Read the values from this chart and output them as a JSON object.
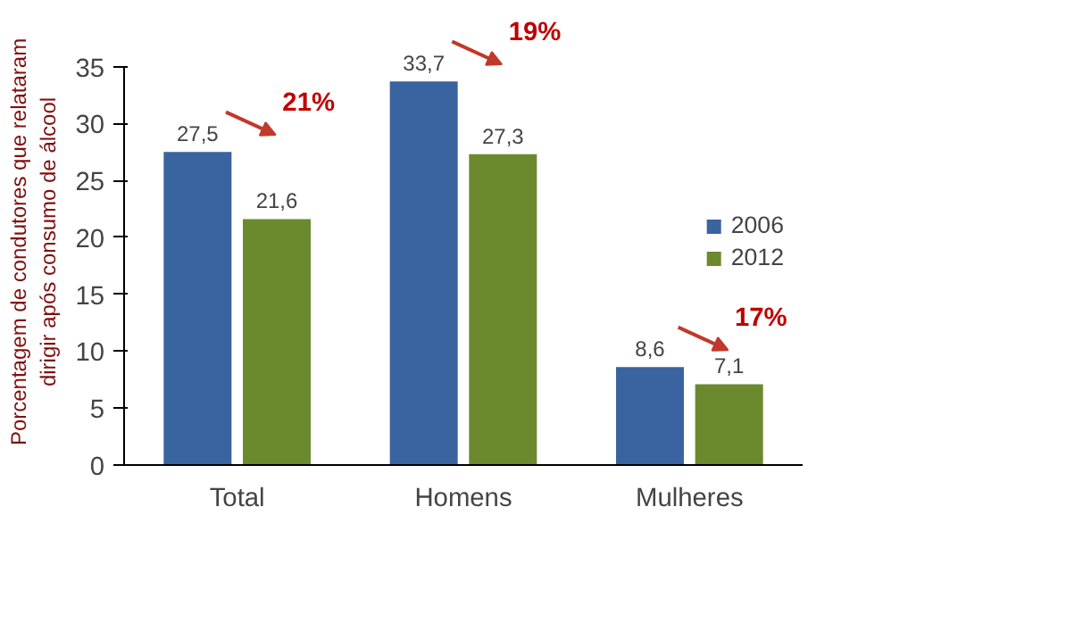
{
  "chart_data": {
    "type": "bar",
    "ylabel": "Porcentagem de condutores que relataram\ndirigir após consumo de álcool",
    "categories": [
      "Total",
      "Homens",
      "Mulheres"
    ],
    "series": [
      {
        "name": "2006",
        "color": "#3a64a0",
        "values": [
          27.5,
          33.7,
          8.6
        ],
        "value_labels": [
          "27,5",
          "33,7",
          "8,6"
        ]
      },
      {
        "name": "2012",
        "color": "#6b8a2e",
        "values": [
          21.6,
          27.3,
          7.1
        ],
        "value_labels": [
          "21,6",
          "27,3",
          "7,1"
        ]
      }
    ],
    "annotations": [
      "21%",
      "19%",
      "17%"
    ],
    "ylim": [
      0,
      35
    ],
    "yticks": [
      0,
      5,
      10,
      15,
      20,
      25,
      30,
      35
    ],
    "legend": "right"
  }
}
